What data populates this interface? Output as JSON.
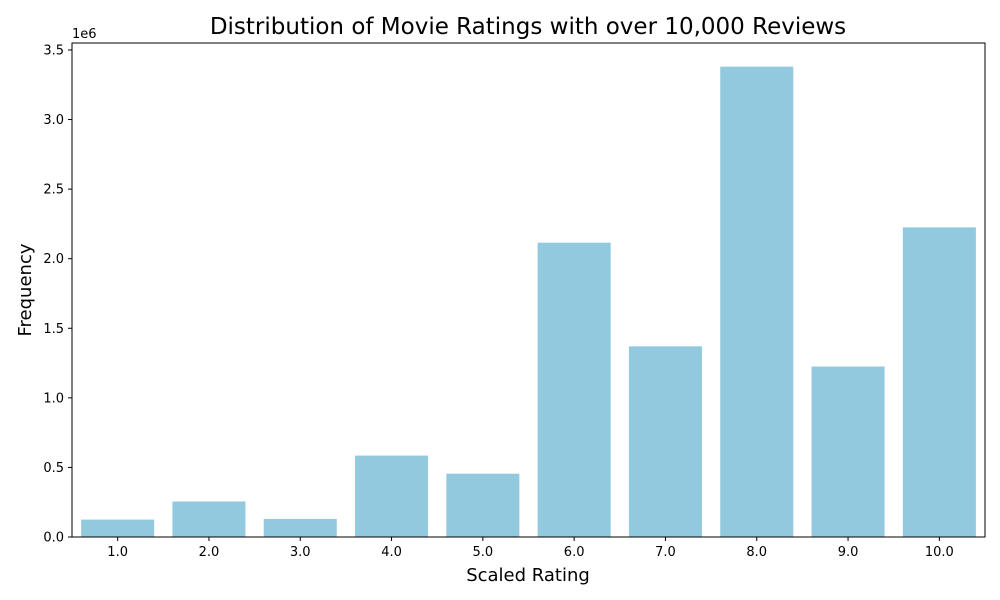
{
  "chart_data": {
    "type": "bar",
    "title": "Distribution of Movie Ratings with over 10,000 Reviews",
    "xlabel": "Scaled Rating",
    "ylabel": "Frequency",
    "y_offset_label": "1e6",
    "categories": [
      "1.0",
      "2.0",
      "3.0",
      "4.0",
      "5.0",
      "6.0",
      "7.0",
      "8.0",
      "9.0",
      "10.0"
    ],
    "values": [
      125000,
      255000,
      130000,
      585000,
      455000,
      2115000,
      1370000,
      3380000,
      1225000,
      2225000
    ],
    "ylim": [
      0,
      3550000
    ],
    "yticks": [
      0,
      500000,
      1000000,
      1500000,
      2000000,
      2500000,
      3000000,
      3500000
    ],
    "ytick_labels": [
      "0.0",
      "0.5",
      "1.0",
      "1.5",
      "2.0",
      "2.5",
      "3.0",
      "3.5"
    ],
    "bar_color": "#92c9df",
    "grid": false,
    "legend": "none"
  }
}
